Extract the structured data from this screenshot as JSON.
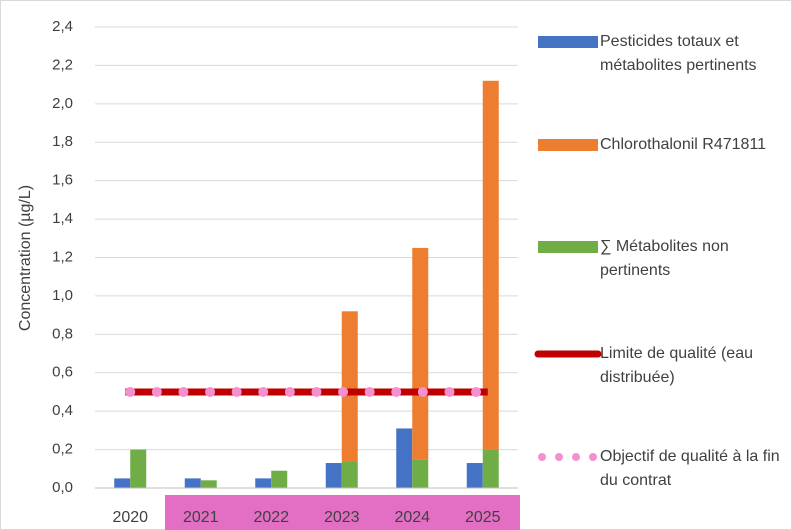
{
  "chart_data": {
    "type": "bar",
    "y_label": "Concentration (µg/L)",
    "categories": [
      "2020",
      "2021",
      "2022",
      "2023",
      "2024",
      "2025"
    ],
    "series": [
      {
        "name": "Pesticides totaux et métabolites pertinents",
        "color": "#4472c4",
        "style": "bar",
        "stack": "a",
        "values": [
          0.05,
          0.05,
          0.05,
          0.13,
          0.31,
          0.13
        ]
      },
      {
        "name": "Chlorothalonil R471811",
        "color": "#ed7d31",
        "style": "bar",
        "stack": "b",
        "values": [
          null,
          null,
          null,
          0.78,
          1.1,
          1.92
        ]
      },
      {
        "name": "∑ Métabolites non pertinents",
        "color": "#70ad47",
        "style": "bar",
        "stack": "b",
        "values": [
          0.2,
          0.04,
          0.09,
          0.14,
          0.15,
          0.2
        ]
      },
      {
        "name": "Limite de qualité (eau distribuée)",
        "color": "#c00000",
        "style": "line",
        "values": [
          0.5,
          0.5,
          0.5,
          0.5,
          0.5,
          0.5
        ]
      },
      {
        "name": "Objectif de qualité à la fin du contrat",
        "color": "#f48fd0",
        "style": "dotted",
        "values": [
          0.5,
          0.5,
          0.5,
          0.5,
          0.5,
          0.5
        ]
      }
    ],
    "ylim": [
      0,
      2.4
    ],
    "yticks": [
      {
        "value": 0,
        "label": "0,0"
      },
      {
        "value": 0.2,
        "label": "0,2"
      },
      {
        "value": 0.4,
        "label": "0,4"
      },
      {
        "value": 0.6,
        "label": "0,6"
      },
      {
        "value": 0.8,
        "label": "0,8"
      },
      {
        "value": 1,
        "label": "1,0"
      },
      {
        "value": 1.2,
        "label": "1,2"
      },
      {
        "value": 1.4,
        "label": "1,4"
      },
      {
        "value": 1.6,
        "label": "1,6"
      },
      {
        "value": 1.8,
        "label": "1,8"
      },
      {
        "value": 2,
        "label": "2,0"
      },
      {
        "value": 2.2,
        "label": "2,2"
      },
      {
        "value": 2.4,
        "label": "2,4"
      }
    ],
    "grid": true
  }
}
